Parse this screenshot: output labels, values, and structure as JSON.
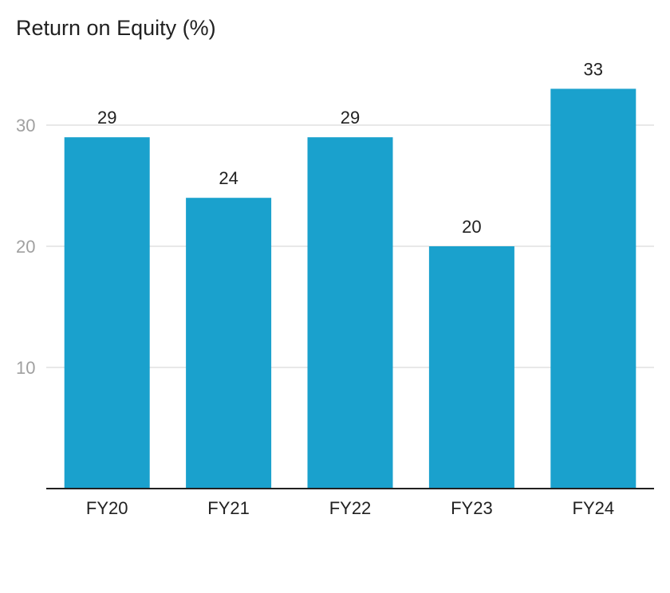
{
  "chart_data": {
    "type": "bar",
    "title": "Return on Equity (%)",
    "xlabel": "",
    "ylabel": "",
    "categories": [
      "FY20",
      "FY21",
      "FY22",
      "FY23",
      "FY24"
    ],
    "values": [
      29,
      24,
      29,
      20,
      33
    ],
    "ylim": [
      0,
      35
    ],
    "yticks": [
      10,
      20,
      30
    ],
    "grid": true,
    "show_data_labels": true,
    "bar_color": "#1aa1cd",
    "grid_color": "#e0e0e0",
    "axis_color": "#212121"
  }
}
